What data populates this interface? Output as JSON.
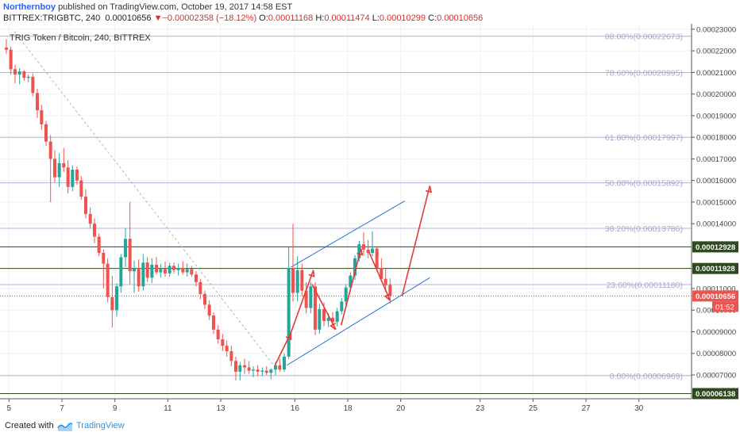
{
  "header": {
    "author": "Northernboy",
    "published_text": "published on TradingView.com, October 19, 2017 14:58 EST",
    "symbol": "BITTREX:TRIGBTC, 240",
    "last_price": "0.00010656",
    "change_arrow": "▼",
    "change": "−0.00002358 (−18.12%)",
    "o_label": "O:",
    "o_value": "0.00011168",
    "h_label": "H:",
    "h_value": "0.00011474",
    "l_label": "L:",
    "l_value": "0.00010299",
    "c_label": "C:",
    "c_value": "0.00010656"
  },
  "footer": {
    "created_with": "Created with",
    "brand": "TradingView"
  },
  "colors": {
    "up": "#26a69a",
    "down": "#ef5350",
    "fib": "#b0b0dc",
    "channel": "#1e6fd9",
    "arrow": "#e53935",
    "level": "#2e4a1e"
  },
  "chart_data": {
    "type": "candlestick",
    "title": "TRIG Token / Bitcoin, 240, BITTREX",
    "y_range": [
      5.9e-05,
      0.0002325
    ],
    "y_ticks": [
      "0.00023000",
      "0.00022000",
      "0.00021000",
      "0.00020000",
      "0.00019000",
      "0.00018000",
      "0.00017000",
      "0.00016000",
      "0.00015000",
      "0.00014000",
      "0.00011000",
      "0.00010000",
      "0.00009000",
      "0.00008000",
      "0.00007000"
    ],
    "x_ticks": [
      {
        "label": "5",
        "day": 5
      },
      {
        "label": "7",
        "day": 7
      },
      {
        "label": "9",
        "day": 9
      },
      {
        "label": "11",
        "day": 11
      },
      {
        "label": "13",
        "day": 13
      },
      {
        "label": "16",
        "day": 15.8
      },
      {
        "label": "18",
        "day": 17.8
      },
      {
        "label": "20",
        "day": 19.8
      },
      {
        "label": "23",
        "day": 22.8
      },
      {
        "label": "25",
        "day": 24.8
      },
      {
        "label": "27",
        "day": 26.8
      },
      {
        "label": "30",
        "day": 28.8
      }
    ],
    "x_range_days": [
      4.9,
      29.8
    ],
    "fib_levels": [
      {
        "label": "88.00%(0.00022673)",
        "value": 0.00022673
      },
      {
        "label": "78.60%(0.00020995)",
        "value": 0.00020995
      },
      {
        "label": "61.80%(0.00017997)",
        "value": 0.00017997
      },
      {
        "label": "50.00%(0.00015892)",
        "value": 0.00015892
      },
      {
        "label": "38.20%(0.00013786)",
        "value": 0.00013786
      },
      {
        "label": "23.60%(0.00011180)",
        "value": 0.0001118
      },
      {
        "label": "0.00%(0.00006969)",
        "value": 6.969e-05
      }
    ],
    "price_levels": [
      {
        "label": "0.00012928",
        "value": 0.00012928
      },
      {
        "label": "0.00011928",
        "value": 0.00011928
      },
      {
        "label": "0.00006138",
        "value": 6.138e-05
      }
    ],
    "last_price": {
      "label": "0.00010656",
      "value": 0.00010656,
      "countdown": "01:52"
    },
    "candles": [
      {
        "d": 4.9,
        "o": 0.0002215,
        "h": 0.0002255,
        "l": 0.0002185,
        "c": 0.0002205
      },
      {
        "d": 5.07,
        "o": 0.0002205,
        "h": 0.000222,
        "l": 0.000209,
        "c": 0.0002115
      },
      {
        "d": 5.23,
        "o": 0.0002115,
        "h": 0.0002135,
        "l": 0.000205,
        "c": 0.000209
      },
      {
        "d": 5.4,
        "o": 0.000209,
        "h": 0.000212,
        "l": 0.0002045,
        "c": 0.0002105
      },
      {
        "d": 5.57,
        "o": 0.0002105,
        "h": 0.000211,
        "l": 0.000206,
        "c": 0.0002075
      },
      {
        "d": 5.73,
        "o": 0.0002075,
        "h": 0.000209,
        "l": 0.0002055,
        "c": 0.000208
      },
      {
        "d": 5.9,
        "o": 0.000208,
        "h": 0.0002095,
        "l": 0.000199,
        "c": 0.0002005
      },
      {
        "d": 6.07,
        "o": 0.0002005,
        "h": 0.0002025,
        "l": 0.000189,
        "c": 0.0001925
      },
      {
        "d": 6.23,
        "o": 0.0001925,
        "h": 0.000195,
        "l": 0.0001835,
        "c": 0.000186
      },
      {
        "d": 6.4,
        "o": 0.000186,
        "h": 0.0001875,
        "l": 0.000176,
        "c": 0.000178
      },
      {
        "d": 6.57,
        "o": 0.000178,
        "h": 0.000181,
        "l": 0.00015,
        "c": 0.00017
      },
      {
        "d": 6.73,
        "o": 0.00017,
        "h": 0.000174,
        "l": 0.000159,
        "c": 0.0001615
      },
      {
        "d": 6.9,
        "o": 0.0001615,
        "h": 0.0001725,
        "l": 0.000157,
        "c": 0.000168
      },
      {
        "d": 7.07,
        "o": 0.000168,
        "h": 0.000175,
        "l": 0.000164,
        "c": 0.000166
      },
      {
        "d": 7.23,
        "o": 0.000166,
        "h": 0.0001695,
        "l": 0.000154,
        "c": 0.000157
      },
      {
        "d": 7.4,
        "o": 0.000157,
        "h": 0.000167,
        "l": 0.000155,
        "c": 0.000165
      },
      {
        "d": 7.57,
        "o": 0.000165,
        "h": 0.0001665,
        "l": 0.000158,
        "c": 0.00016
      },
      {
        "d": 7.73,
        "o": 0.00016,
        "h": 0.000162,
        "l": 0.000151,
        "c": 0.0001525
      },
      {
        "d": 7.9,
        "o": 0.0001525,
        "h": 0.000156,
        "l": 0.0001425,
        "c": 0.0001445
      },
      {
        "d": 8.07,
        "o": 0.0001445,
        "h": 0.0001475,
        "l": 0.000138,
        "c": 0.00014
      },
      {
        "d": 8.23,
        "o": 0.00014,
        "h": 0.0001425,
        "l": 0.000131,
        "c": 0.000134
      },
      {
        "d": 8.4,
        "o": 0.000134,
        "h": 0.0001355,
        "l": 0.000125,
        "c": 0.0001265
      },
      {
        "d": 8.57,
        "o": 0.0001265,
        "h": 0.000128,
        "l": 0.00011,
        "c": 0.0001215
      },
      {
        "d": 8.73,
        "o": 0.0001215,
        "h": 0.000124,
        "l": 0.0001035,
        "c": 0.000106
      },
      {
        "d": 8.9,
        "o": 0.000106,
        "h": 0.000116,
        "l": 9.2e-05,
        "c": 0.0001
      },
      {
        "d": 9.07,
        "o": 0.0001,
        "h": 0.0001125,
        "l": 9.7e-05,
        "c": 0.000111
      },
      {
        "d": 9.23,
        "o": 0.000111,
        "h": 0.000126,
        "l": 0.000108,
        "c": 0.0001245
      },
      {
        "d": 9.4,
        "o": 0.0001245,
        "h": 0.000138,
        "l": 0.00012,
        "c": 0.000133
      },
      {
        "d": 9.57,
        "o": 0.000133,
        "h": 0.00015,
        "l": 0.000112,
        "c": 0.000118
      },
      {
        "d": 9.73,
        "o": 0.000118,
        "h": 0.000123,
        "l": 0.000108,
        "c": 0.0001195
      },
      {
        "d": 9.9,
        "o": 0.0001195,
        "h": 0.0001235,
        "l": 0.0001085,
        "c": 0.000111
      },
      {
        "d": 10.07,
        "o": 0.000111,
        "h": 0.000126,
        "l": 0.000109,
        "c": 0.000122
      },
      {
        "d": 10.23,
        "o": 0.000122,
        "h": 0.0001245,
        "l": 0.000113,
        "c": 0.000115
      },
      {
        "d": 10.4,
        "o": 0.000115,
        "h": 0.000124,
        "l": 0.0001125,
        "c": 0.000121
      },
      {
        "d": 10.57,
        "o": 0.000121,
        "h": 0.0001245,
        "l": 0.0001165,
        "c": 0.0001175
      },
      {
        "d": 10.73,
        "o": 0.0001175,
        "h": 0.0001215,
        "l": 0.000115,
        "c": 0.000119
      },
      {
        "d": 10.9,
        "o": 0.000119,
        "h": 0.0001225,
        "l": 0.0001155,
        "c": 0.000117
      },
      {
        "d": 11.07,
        "o": 0.000117,
        "h": 0.000122,
        "l": 0.0001155,
        "c": 0.0001205
      },
      {
        "d": 11.23,
        "o": 0.0001205,
        "h": 0.000122,
        "l": 0.000117,
        "c": 0.0001185
      },
      {
        "d": 11.4,
        "o": 0.0001185,
        "h": 0.0001215,
        "l": 0.000116,
        "c": 0.0001195
      },
      {
        "d": 11.57,
        "o": 0.0001195,
        "h": 0.0001225,
        "l": 0.0001165,
        "c": 0.0001175
      },
      {
        "d": 11.73,
        "o": 0.0001175,
        "h": 0.0001215,
        "l": 0.0001155,
        "c": 0.000119
      },
      {
        "d": 11.9,
        "o": 0.000119,
        "h": 0.0001205,
        "l": 0.0001155,
        "c": 0.0001165
      },
      {
        "d": 12.07,
        "o": 0.0001165,
        "h": 0.000118,
        "l": 0.000111,
        "c": 0.000113
      },
      {
        "d": 12.23,
        "o": 0.000113,
        "h": 0.0001145,
        "l": 0.000105,
        "c": 0.0001075
      },
      {
        "d": 12.4,
        "o": 0.0001075,
        "h": 0.000109,
        "l": 0.0001005,
        "c": 0.0001025
      },
      {
        "d": 12.57,
        "o": 0.0001025,
        "h": 0.0001045,
        "l": 9.55e-05,
        "c": 9.75e-05
      },
      {
        "d": 12.73,
        "o": 9.75e-05,
        "h": 9.9e-05,
        "l": 8.9e-05,
        "c": 9.1e-05
      },
      {
        "d": 12.9,
        "o": 9.1e-05,
        "h": 9.3e-05,
        "l": 8.45e-05,
        "c": 8.65e-05
      },
      {
        "d": 13.07,
        "o": 8.65e-05,
        "h": 8.9e-05,
        "l": 8.1e-05,
        "c": 8.35e-05
      },
      {
        "d": 13.23,
        "o": 8.35e-05,
        "h": 8.6e-05,
        "l": 7.85e-05,
        "c": 8.1e-05
      },
      {
        "d": 13.4,
        "o": 8.1e-05,
        "h": 8.35e-05,
        "l": 7.4e-05,
        "c": 7.65e-05
      },
      {
        "d": 13.57,
        "o": 7.65e-05,
        "h": 7.85e-05,
        "l": 6.75e-05,
        "c": 7.15e-05
      },
      {
        "d": 13.73,
        "o": 7.15e-05,
        "h": 7.6e-05,
        "l": 6.75e-05,
        "c": 7.45e-05
      },
      {
        "d": 13.9,
        "o": 7.45e-05,
        "h": 7.75e-05,
        "l": 7.05e-05,
        "c": 7.35e-05
      },
      {
        "d": 14.07,
        "o": 7.35e-05,
        "h": 7.65e-05,
        "l": 7.05e-05,
        "c": 7.2e-05
      },
      {
        "d": 14.23,
        "o": 7.2e-05,
        "h": 7.4e-05,
        "l": 6.9e-05,
        "c": 7.25e-05
      },
      {
        "d": 14.4,
        "o": 7.25e-05,
        "h": 7.45e-05,
        "l": 6.95e-05,
        "c": 7.15e-05
      },
      {
        "d": 14.57,
        "o": 7.15e-05,
        "h": 7.35e-05,
        "l": 6.95e-05,
        "c": 7.2e-05
      },
      {
        "d": 14.73,
        "o": 7.2e-05,
        "h": 7.4e-05,
        "l": 7e-05,
        "c": 7.1e-05
      },
      {
        "d": 14.9,
        "o": 7.1e-05,
        "h": 7.3e-05,
        "l": 6.8e-05,
        "c": 7.25e-05
      },
      {
        "d": 15.07,
        "o": 7.25e-05,
        "h": 7.6e-05,
        "l": 7e-05,
        "c": 7.45e-05
      },
      {
        "d": 15.23,
        "o": 7.45e-05,
        "h": 7.75e-05,
        "l": 7.15e-05,
        "c": 7.25e-05
      },
      {
        "d": 15.4,
        "o": 7.25e-05,
        "h": 8e-05,
        "l": 7.15e-05,
        "c": 7.85e-05
      },
      {
        "d": 15.57,
        "o": 7.85e-05,
        "h": 0.000129,
        "l": 7.75e-05,
        "c": 0.0001195
      },
      {
        "d": 15.73,
        "o": 0.0001195,
        "h": 0.00014,
        "l": 0.000104,
        "c": 0.000108
      },
      {
        "d": 15.9,
        "o": 0.000108,
        "h": 0.000125,
        "l": 0.000104,
        "c": 0.0001185
      },
      {
        "d": 16.07,
        "o": 0.0001185,
        "h": 0.0001215,
        "l": 0.0001065,
        "c": 0.000109
      },
      {
        "d": 16.23,
        "o": 0.000109,
        "h": 0.000113,
        "l": 9.85e-05,
        "c": 0.000101
      },
      {
        "d": 16.4,
        "o": 0.000101,
        "h": 0.000113,
        "l": 9.85e-05,
        "c": 0.000111
      },
      {
        "d": 16.57,
        "o": 0.000111,
        "h": 0.000113,
        "l": 8.85e-05,
        "c": 9.1e-05
      },
      {
        "d": 16.73,
        "o": 9.1e-05,
        "h": 0.000103,
        "l": 8.9e-05,
        "c": 0.0001005
      },
      {
        "d": 16.9,
        "o": 0.0001005,
        "h": 0.0001035,
        "l": 9.25e-05,
        "c": 9.5e-05
      },
      {
        "d": 17.07,
        "o": 9.5e-05,
        "h": 9.85e-05,
        "l": 9.2e-05,
        "c": 9.65e-05
      },
      {
        "d": 17.23,
        "o": 9.65e-05,
        "h": 9.9e-05,
        "l": 9.3e-05,
        "c": 9.45e-05
      },
      {
        "d": 17.4,
        "o": 9.45e-05,
        "h": 0.000101,
        "l": 9.25e-05,
        "c": 9.95e-05
      },
      {
        "d": 17.57,
        "o": 9.95e-05,
        "h": 0.0001055,
        "l": 9.8e-05,
        "c": 0.000104
      },
      {
        "d": 17.73,
        "o": 0.000104,
        "h": 0.000112,
        "l": 0.000102,
        "c": 0.0001105
      },
      {
        "d": 17.9,
        "o": 0.0001105,
        "h": 0.0001175,
        "l": 0.0001085,
        "c": 0.000116
      },
      {
        "d": 18.07,
        "o": 0.000116,
        "h": 0.0001255,
        "l": 0.000114,
        "c": 0.000124
      },
      {
        "d": 18.23,
        "o": 0.000124,
        "h": 0.000132,
        "l": 0.0001225,
        "c": 0.0001305
      },
      {
        "d": 18.4,
        "o": 0.0001305,
        "h": 0.000136,
        "l": 0.0001255,
        "c": 0.000128
      },
      {
        "d": 18.57,
        "o": 0.000128,
        "h": 0.0001325,
        "l": 0.000124,
        "c": 0.0001265
      },
      {
        "d": 18.73,
        "o": 0.0001265,
        "h": 0.0001365,
        "l": 0.000125,
        "c": 0.0001285
      },
      {
        "d": 18.9,
        "o": 0.0001285,
        "h": 0.000129,
        "l": 0.000118,
        "c": 0.0001195
      },
      {
        "d": 19.07,
        "o": 0.0001195,
        "h": 0.000124,
        "l": 0.000113,
        "c": 0.0001145
      },
      {
        "d": 19.23,
        "o": 0.0001145,
        "h": 0.000119,
        "l": 0.0001085,
        "c": 0.0001115
      },
      {
        "d": 19.4,
        "o": 0.0001117,
        "h": 0.0001147,
        "l": 0.000103,
        "c": 0.0001066
      }
    ],
    "channel": [
      {
        "d1": 15.65,
        "v1": 0.00011989,
        "d2": 19.95,
        "v2": 0.0001505
      },
      {
        "d1": 15.5,
        "v1": 7.45e-05,
        "d2": 20.9,
        "v2": 0.000115
      }
    ],
    "trend_dashed": {
      "d1": 5.2,
      "v1": 0.000229,
      "d2": 15.0,
      "v2": 7.45e-05
    },
    "arrows": [
      {
        "d1": 15.05,
        "v1": 7.45e-05,
        "d2": 15.65,
        "v2": 8.95e-05
      },
      {
        "d1": 15.65,
        "v1": 8.95e-05,
        "d2": 16.5,
        "v2": 0.0001185
      },
      {
        "d1": 16.45,
        "v1": 0.000112,
        "d2": 17.35,
        "v2": 9.1e-05
      },
      {
        "d1": 17.55,
        "v1": 9.3e-05,
        "d2": 18.3,
        "v2": 0.0001285
      },
      {
        "d1": 18.6,
        "v1": 0.000127,
        "d2": 19.4,
        "v2": 0.0001045
      },
      {
        "d1": 19.85,
        "v1": 0.0001065,
        "d2": 20.9,
        "v2": 0.0001575
      }
    ]
  }
}
